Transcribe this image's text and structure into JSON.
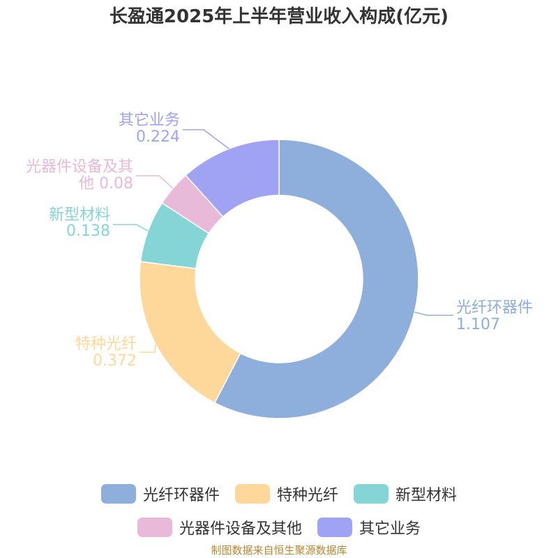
{
  "chart_data": {
    "type": "pie",
    "variant": "donut",
    "title": "长盈通2025年上半年营业收入构成(亿元)",
    "slices": [
      {
        "name": "光纤环器件",
        "value": 1.107,
        "value_label": "1.107",
        "color": "#8eaedb"
      },
      {
        "name": "特种光纤",
        "value": 0.372,
        "value_label": "0.372",
        "color": "#fdd89a"
      },
      {
        "name": "新型材料",
        "value": 0.138,
        "value_label": "0.138",
        "color": "#85d5d6"
      },
      {
        "name": "光器件设备及其他",
        "value": 0.08,
        "value_label": "0.08",
        "color": "#e8b9d8"
      },
      {
        "name": "其它业务",
        "value": 0.224,
        "value_label": "0.224",
        "color": "#a0a3f3"
      }
    ],
    "legend_placement": "bottom"
  },
  "legend": {
    "row1": [
      {
        "label": "光纤环器件",
        "color": "#8eaedb"
      },
      {
        "label": "特种光纤",
        "color": "#fdd89a"
      },
      {
        "label": "新型材料",
        "color": "#85d5d6"
      }
    ],
    "row2": [
      {
        "label": "光器件设备及其他",
        "color": "#e8b9d8"
      },
      {
        "label": "其它业务",
        "color": "#a0a3f3"
      }
    ]
  },
  "source_note": "制图数据来自恒生聚源数据库"
}
